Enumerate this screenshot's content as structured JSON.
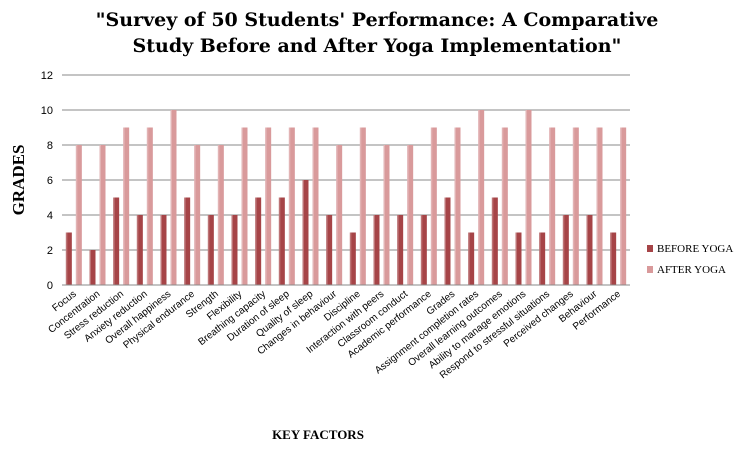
{
  "chart_data": {
    "type": "bar",
    "title_lines": [
      "\"Survey of 50 Students' Performance: A Comparative",
      "Study Before and After Yoga Implementation\""
    ],
    "xlabel": "KEY FACTORS",
    "ylabel": "GRADES",
    "ylim": [
      0,
      12
    ],
    "yticks": [
      0,
      2,
      4,
      6,
      8,
      10,
      12
    ],
    "grid": true,
    "legend_position": "right",
    "categories": [
      "Focus",
      "Concentration",
      "Stress reduction",
      "Anxiety reduction",
      "Overall happiness",
      "Physical endurance",
      "Strength",
      "Flexibility",
      "Breathing capacity",
      "Duration of sleep",
      "Quality of sleep",
      "Changes in behaviour",
      "Discipline",
      "Interaction with peers",
      "Classroom conduct",
      "Academic performance",
      "Grades",
      "Assignment completion rates",
      "Overall learning outcomes",
      "Ability to manage emotions",
      "Respond to stressful situations",
      "Perceived changes",
      "Behaviour",
      "Performance"
    ],
    "series": [
      {
        "name": "BEFORE YOGA",
        "color": "#a64447",
        "values": [
          3,
          2,
          5,
          4,
          4,
          5,
          4,
          4,
          5,
          5,
          6,
          4,
          3,
          4,
          4,
          4,
          5,
          3,
          5,
          3,
          3,
          4,
          4,
          3
        ]
      },
      {
        "name": "AFTER YOGA",
        "color": "#d99a9b",
        "values": [
          8,
          8,
          9,
          9,
          10,
          8,
          8,
          9,
          9,
          9,
          9,
          8,
          9,
          8,
          8,
          9,
          9,
          10,
          9,
          10,
          9,
          9,
          9,
          9
        ]
      }
    ]
  }
}
